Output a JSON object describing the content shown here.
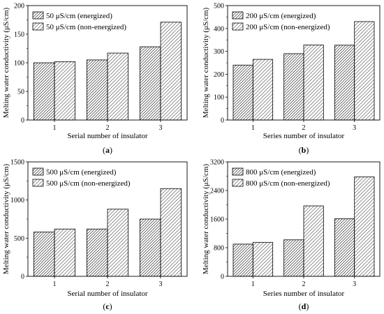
{
  "chart_data": [
    {
      "type": "bar",
      "panel_label": "(a)",
      "panel_letter": "a",
      "categories": [
        "1",
        "2",
        "3"
      ],
      "series": [
        {
          "name": "50 μS/cm (energized)",
          "values": [
            100,
            105,
            128
          ]
        },
        {
          "name": "50 μS/cm (non-energized)",
          "values": [
            102,
            117,
            171
          ]
        }
      ],
      "xlabel": "Serial number of insulator",
      "ylabel": "Melting water conductivity (μS/cm)",
      "ylim": [
        0,
        200
      ],
      "yticks": [
        0,
        50,
        100,
        150,
        200
      ],
      "grid": false,
      "legend": "top-left"
    },
    {
      "type": "bar",
      "panel_label": "(b)",
      "panel_letter": "b",
      "categories": [
        "1",
        "2",
        "3"
      ],
      "series": [
        {
          "name": "200 μS/cm (energized)",
          "values": [
            240,
            290,
            327
          ]
        },
        {
          "name": "200 μS/cm (non-energized)",
          "values": [
            265,
            328,
            430
          ]
        }
      ],
      "xlabel": "Series number of insulator",
      "ylabel": "Melting water conductivity (μS/cm)",
      "ylim": [
        0,
        500
      ],
      "yticks": [
        0,
        100,
        200,
        300,
        400,
        500
      ],
      "grid": false,
      "legend": "top-left"
    },
    {
      "type": "bar",
      "panel_label": "(c)",
      "panel_letter": "c",
      "categories": [
        "1",
        "2",
        "3"
      ],
      "series": [
        {
          "name": "500 μS/cm (energized)",
          "values": [
            580,
            620,
            750
          ]
        },
        {
          "name": "500 μS/cm (non-energized)",
          "values": [
            620,
            880,
            1150
          ]
        }
      ],
      "xlabel": "Serial number of insulator",
      "ylabel": "Melting water conductivity (μS/cm)",
      "ylim": [
        0,
        1500
      ],
      "yticks": [
        0,
        500,
        1000,
        1500
      ],
      "grid": false,
      "legend": "top-left"
    },
    {
      "type": "bar",
      "panel_label": "(d)",
      "panel_letter": "d",
      "categories": [
        "1",
        "2",
        "3"
      ],
      "series": [
        {
          "name": "800 μS/cm (energized)",
          "values": [
            900,
            1020,
            1610
          ]
        },
        {
          "name": "800 μS/cm (non-energized)",
          "values": [
            950,
            1970,
            2780
          ]
        }
      ],
      "xlabel": "Series number of insulator",
      "ylabel": "Melting water conductivity (μS/cm)",
      "ylim": [
        0,
        3200
      ],
      "yticks": [
        0,
        800,
        1600,
        2400,
        3200
      ],
      "grid": false,
      "legend": "top-left"
    }
  ]
}
